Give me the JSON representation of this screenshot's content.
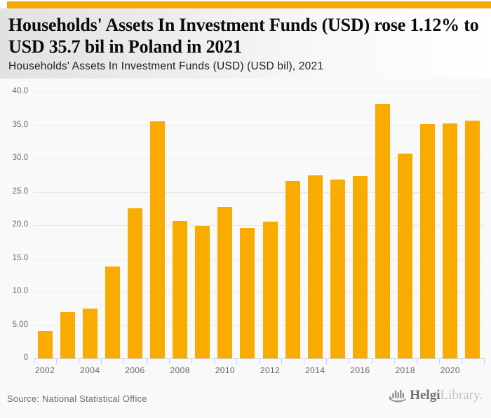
{
  "theme": {
    "accent_color": "#F5A800",
    "bar_color": "#F9AB00",
    "grid_color": "#e9e9e9",
    "axis_color": "#c9d0df",
    "y_label_color": "#6b6b6b",
    "x_label_color": "#5f6672"
  },
  "header": {
    "title": "Households' Assets In Investment Funds (USD) rose 1.12% to USD 35.7 bil in Poland in 2021",
    "subtitle": "Households' Assets In Investment Funds (USD) (USD bil), 2021"
  },
  "chart_data": {
    "type": "bar",
    "title": "Households' Assets In Investment Funds (USD) rose 1.12% to USD 35.7 bil in Poland in 2021",
    "subtitle": "Households' Assets In Investment Funds (USD) (USD bil), 2021",
    "ylabel": "USD bil",
    "xlabel": "",
    "categories": [
      "2002",
      "2003",
      "2004",
      "2005",
      "2006",
      "2007",
      "2008",
      "2009",
      "2010",
      "2011",
      "2012",
      "2013",
      "2014",
      "2015",
      "2016",
      "2017",
      "2018",
      "2019",
      "2020",
      "2021"
    ],
    "values": [
      4.1,
      7.0,
      7.5,
      13.8,
      22.5,
      35.6,
      20.6,
      19.9,
      22.7,
      19.6,
      20.5,
      26.6,
      27.5,
      26.8,
      27.4,
      38.2,
      30.7,
      35.2,
      35.3,
      35.7
    ],
    "ylim": [
      0,
      40
    ],
    "yticks": [
      {
        "value": 0,
        "label": "0"
      },
      {
        "value": 5,
        "label": "5.00"
      },
      {
        "value": 10,
        "label": "10.0"
      },
      {
        "value": 15,
        "label": "15.0"
      },
      {
        "value": 20,
        "label": "20.0"
      },
      {
        "value": 25,
        "label": "25.0"
      },
      {
        "value": 30,
        "label": "30.0"
      },
      {
        "value": 35,
        "label": "35.0"
      },
      {
        "value": 40,
        "label": "40.0"
      }
    ],
    "xtick_labels": [
      "2002",
      "2004",
      "2006",
      "2008",
      "2010",
      "2012",
      "2014",
      "2016",
      "2018",
      "2020"
    ],
    "grid": true,
    "legend": "none"
  },
  "footer": {
    "source": "Source: National Statistical Office",
    "logo_part1": "Helgi",
    "logo_part2": "Library."
  }
}
